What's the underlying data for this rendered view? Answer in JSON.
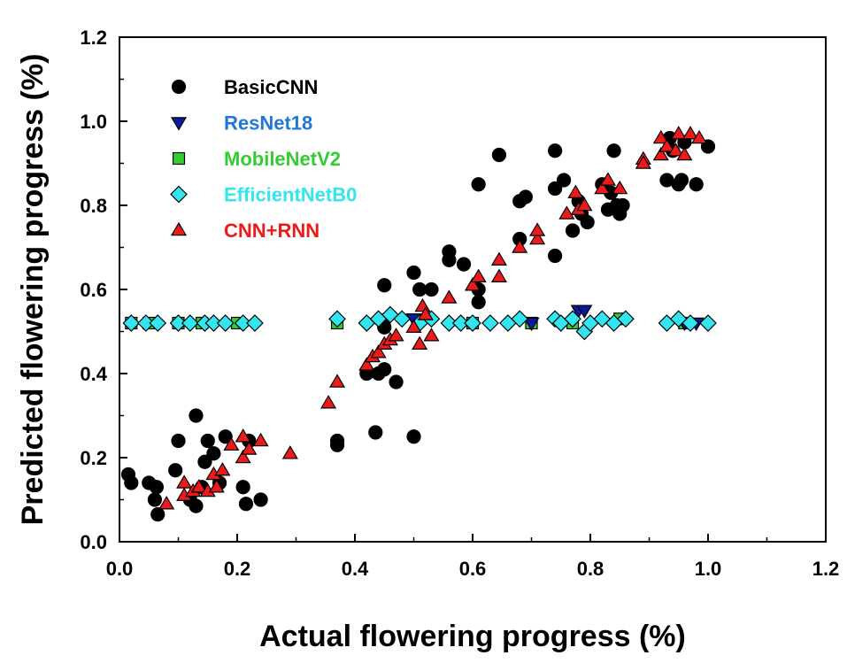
{
  "chart_data": {
    "type": "scatter",
    "xlabel": "Actual flowering progress (%)",
    "ylabel": "Predicted flowering progress (%)",
    "xlim": [
      0,
      1.2
    ],
    "ylim": [
      0,
      1.2
    ],
    "xticks": [
      "0.0",
      "0.2",
      "0.4",
      "0.6",
      "0.8",
      "1.0",
      "1.2"
    ],
    "yticks": [
      "0.0",
      "0.2",
      "0.4",
      "0.6",
      "0.8",
      "1.0",
      "1.2"
    ],
    "grid": false,
    "legend_position": "top-left",
    "series": [
      {
        "name": "BasicCNN",
        "marker": "circle",
        "color": "#000000",
        "label_color": "#000000",
        "points": [
          [
            0.015,
            0.16
          ],
          [
            0.02,
            0.14
          ],
          [
            0.05,
            0.14
          ],
          [
            0.06,
            0.1
          ],
          [
            0.063,
            0.13
          ],
          [
            0.065,
            0.065
          ],
          [
            0.095,
            0.17
          ],
          [
            0.1,
            0.24
          ],
          [
            0.12,
            0.1
          ],
          [
            0.13,
            0.3
          ],
          [
            0.13,
            0.085
          ],
          [
            0.14,
            0.13
          ],
          [
            0.145,
            0.19
          ],
          [
            0.15,
            0.24
          ],
          [
            0.16,
            0.21
          ],
          [
            0.17,
            0.14
          ],
          [
            0.18,
            0.25
          ],
          [
            0.21,
            0.13
          ],
          [
            0.215,
            0.09
          ],
          [
            0.22,
            0.24
          ],
          [
            0.24,
            0.1
          ],
          [
            0.37,
            0.24
          ],
          [
            0.37,
            0.23
          ],
          [
            0.42,
            0.4
          ],
          [
            0.435,
            0.26
          ],
          [
            0.44,
            0.4
          ],
          [
            0.45,
            0.41
          ],
          [
            0.45,
            0.61
          ],
          [
            0.45,
            0.51
          ],
          [
            0.47,
            0.38
          ],
          [
            0.5,
            0.64
          ],
          [
            0.5,
            0.25
          ],
          [
            0.51,
            0.6
          ],
          [
            0.53,
            0.6
          ],
          [
            0.56,
            0.69
          ],
          [
            0.56,
            0.67
          ],
          [
            0.585,
            0.66
          ],
          [
            0.61,
            0.85
          ],
          [
            0.61,
            0.6
          ],
          [
            0.61,
            0.57
          ],
          [
            0.645,
            0.92
          ],
          [
            0.68,
            0.81
          ],
          [
            0.68,
            0.72
          ],
          [
            0.69,
            0.82
          ],
          [
            0.74,
            0.93
          ],
          [
            0.74,
            0.84
          ],
          [
            0.74,
            0.68
          ],
          [
            0.755,
            0.86
          ],
          [
            0.77,
            0.74
          ],
          [
            0.78,
            0.81
          ],
          [
            0.785,
            0.78
          ],
          [
            0.795,
            0.76
          ],
          [
            0.82,
            0.85
          ],
          [
            0.83,
            0.79
          ],
          [
            0.835,
            0.83
          ],
          [
            0.84,
            0.93
          ],
          [
            0.845,
            0.8
          ],
          [
            0.85,
            0.78
          ],
          [
            0.855,
            0.8
          ],
          [
            0.93,
            0.86
          ],
          [
            0.935,
            0.96
          ],
          [
            0.94,
            0.93
          ],
          [
            0.95,
            0.85
          ],
          [
            0.955,
            0.86
          ],
          [
            0.96,
            0.95
          ],
          [
            0.98,
            0.85
          ],
          [
            1.0,
            0.94
          ]
        ]
      },
      {
        "name": "ResNet18",
        "marker": "triangle-down",
        "color": "#0a1a9c",
        "label_color": "#1e78d6",
        "points": [
          [
            0.78,
            0.55
          ],
          [
            0.79,
            0.55
          ],
          [
            0.5,
            0.53
          ],
          [
            0.45,
            0.53
          ],
          [
            0.7,
            0.52
          ],
          [
            0.96,
            0.52
          ],
          [
            0.98,
            0.52
          ]
        ]
      },
      {
        "name": "MobileNetV2",
        "marker": "square",
        "color": "#33cc33",
        "label_color": "#33cc33",
        "points": [
          [
            0.02,
            0.52
          ],
          [
            0.05,
            0.52
          ],
          [
            0.1,
            0.52
          ],
          [
            0.14,
            0.52
          ],
          [
            0.2,
            0.52
          ],
          [
            0.37,
            0.52
          ],
          [
            0.45,
            0.52
          ],
          [
            0.6,
            0.52
          ],
          [
            0.7,
            0.52
          ],
          [
            0.77,
            0.52
          ],
          [
            0.85,
            0.53
          ],
          [
            0.96,
            0.52
          ]
        ]
      },
      {
        "name": "EfficientNetB0",
        "marker": "diamond",
        "color": "#33e5f0",
        "label_color": "#33e5f0",
        "points": [
          [
            0.02,
            0.52
          ],
          [
            0.045,
            0.52
          ],
          [
            0.065,
            0.52
          ],
          [
            0.1,
            0.52
          ],
          [
            0.12,
            0.52
          ],
          [
            0.145,
            0.52
          ],
          [
            0.16,
            0.52
          ],
          [
            0.18,
            0.52
          ],
          [
            0.21,
            0.52
          ],
          [
            0.23,
            0.52
          ],
          [
            0.37,
            0.53
          ],
          [
            0.42,
            0.52
          ],
          [
            0.44,
            0.53
          ],
          [
            0.46,
            0.54
          ],
          [
            0.48,
            0.53
          ],
          [
            0.51,
            0.52
          ],
          [
            0.53,
            0.53
          ],
          [
            0.56,
            0.52
          ],
          [
            0.58,
            0.52
          ],
          [
            0.6,
            0.52
          ],
          [
            0.63,
            0.52
          ],
          [
            0.66,
            0.52
          ],
          [
            0.68,
            0.53
          ],
          [
            0.74,
            0.53
          ],
          [
            0.75,
            0.52
          ],
          [
            0.77,
            0.53
          ],
          [
            0.79,
            0.5
          ],
          [
            0.8,
            0.52
          ],
          [
            0.82,
            0.53
          ],
          [
            0.84,
            0.52
          ],
          [
            0.86,
            0.53
          ],
          [
            0.93,
            0.52
          ],
          [
            0.95,
            0.53
          ],
          [
            0.97,
            0.52
          ],
          [
            1.0,
            0.52
          ]
        ]
      },
      {
        "name": "CNN+RNN",
        "marker": "triangle-up",
        "color": "#ee1a1a",
        "label_color": "#ee1a1a",
        "points": [
          [
            0.08,
            0.09
          ],
          [
            0.11,
            0.14
          ],
          [
            0.11,
            0.11
          ],
          [
            0.125,
            0.12
          ],
          [
            0.135,
            0.13
          ],
          [
            0.15,
            0.12
          ],
          [
            0.16,
            0.16
          ],
          [
            0.165,
            0.13
          ],
          [
            0.175,
            0.17
          ],
          [
            0.19,
            0.23
          ],
          [
            0.21,
            0.25
          ],
          [
            0.21,
            0.2
          ],
          [
            0.22,
            0.22
          ],
          [
            0.24,
            0.24
          ],
          [
            0.29,
            0.21
          ],
          [
            0.355,
            0.33
          ],
          [
            0.37,
            0.38
          ],
          [
            0.42,
            0.42
          ],
          [
            0.43,
            0.44
          ],
          [
            0.44,
            0.45
          ],
          [
            0.45,
            0.47
          ],
          [
            0.46,
            0.48
          ],
          [
            0.47,
            0.49
          ],
          [
            0.5,
            0.51
          ],
          [
            0.51,
            0.47
          ],
          [
            0.515,
            0.56
          ],
          [
            0.52,
            0.54
          ],
          [
            0.53,
            0.49
          ],
          [
            0.56,
            0.58
          ],
          [
            0.6,
            0.61
          ],
          [
            0.61,
            0.63
          ],
          [
            0.645,
            0.63
          ],
          [
            0.645,
            0.67
          ],
          [
            0.68,
            0.7
          ],
          [
            0.71,
            0.72
          ],
          [
            0.71,
            0.74
          ],
          [
            0.76,
            0.78
          ],
          [
            0.775,
            0.83
          ],
          [
            0.78,
            0.79
          ],
          [
            0.79,
            0.8
          ],
          [
            0.82,
            0.84
          ],
          [
            0.83,
            0.86
          ],
          [
            0.85,
            0.84
          ],
          [
            0.89,
            0.91
          ],
          [
            0.89,
            0.9
          ],
          [
            0.92,
            0.92
          ],
          [
            0.92,
            0.96
          ],
          [
            0.93,
            0.94
          ],
          [
            0.945,
            0.93
          ],
          [
            0.95,
            0.97
          ],
          [
            0.96,
            0.92
          ],
          [
            0.97,
            0.97
          ],
          [
            0.985,
            0.96
          ]
        ]
      }
    ]
  }
}
